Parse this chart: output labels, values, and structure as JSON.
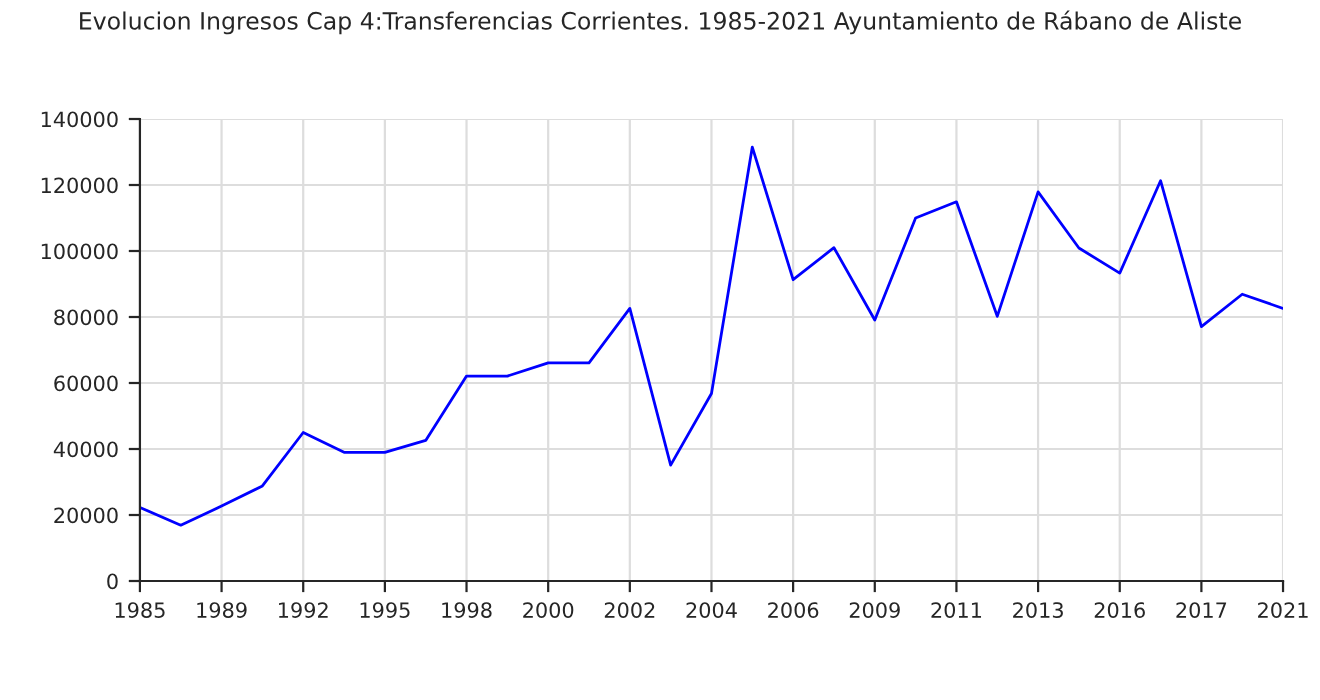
{
  "chart_data": {
    "type": "line",
    "title": "Evolucion Ingresos Cap 4:Transferencias Corrientes. 1985-2021 Ayuntamiento de Rábano de Aliste",
    "categories": [
      "1985",
      null,
      "1989",
      null,
      "1992",
      null,
      "1995",
      null,
      "1998",
      null,
      "2000",
      null,
      "2002",
      null,
      "2004",
      null,
      "2006",
      null,
      "2009",
      null,
      "2011",
      null,
      "2013",
      null,
      "2016",
      null,
      "2017",
      null,
      "2021"
    ],
    "series": [
      {
        "color": "#0000ff",
        "values": [
          22300,
          16900,
          22700,
          28800,
          45000,
          39000,
          39000,
          42600,
          62100,
          62100,
          66100,
          66100,
          82600,
          35100,
          56800,
          131500,
          91300,
          101000,
          79100,
          110000,
          114900,
          80200,
          117900,
          100900,
          93300,
          121300,
          77100,
          86900,
          82600
        ]
      }
    ],
    "ylim": [
      0,
      140000
    ],
    "yticks": [
      0,
      20000,
      40000,
      60000,
      80000,
      100000,
      120000,
      140000
    ],
    "grid": true,
    "marker": "none",
    "line_style": "solid"
  }
}
